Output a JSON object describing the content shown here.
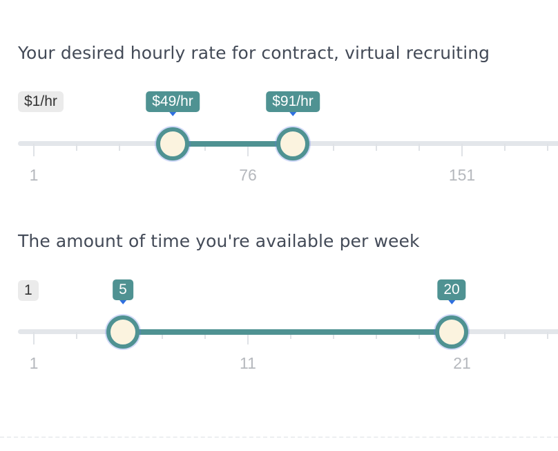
{
  "rate": {
    "title": "Your desired hourly rate for contract, virtual recruiting",
    "min_label": "$1/hr",
    "low_value": "$49/hr",
    "high_value": "$91/hr",
    "axis_labels": [
      "1",
      "76",
      "151"
    ]
  },
  "time": {
    "title": "The amount of time you're available per week",
    "min_label": "1",
    "low_value": "5",
    "high_value": "20",
    "axis_labels": [
      "1",
      "11",
      "21"
    ]
  },
  "colors": {
    "accent": "#4f9292",
    "track": "#e3e6ea",
    "handle_fill": "#fbf3df",
    "pointer": "#2f6fe0"
  }
}
